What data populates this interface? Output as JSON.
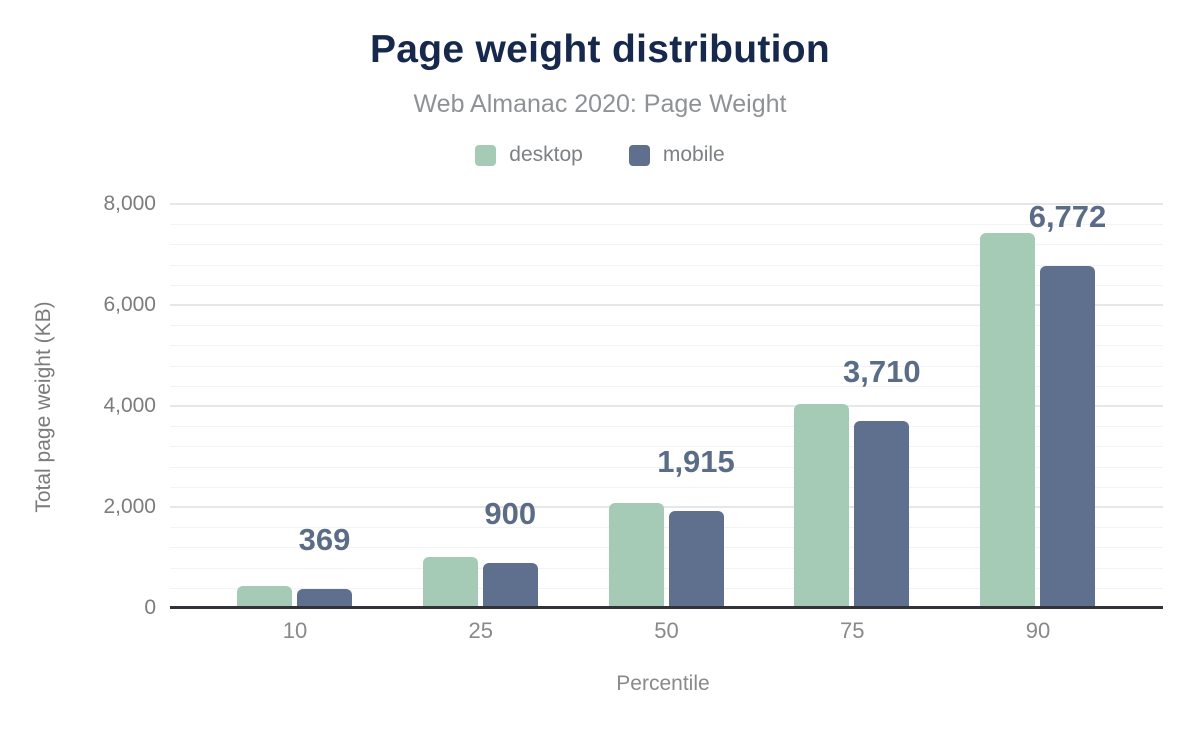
{
  "title": "Page weight distribution",
  "subtitle": "Web Almanac 2020: Page Weight",
  "chart_data": {
    "type": "bar",
    "title": "Page weight distribution",
    "subtitle": "Web Almanac 2020: Page Weight",
    "categories": [
      "10",
      "25",
      "50",
      "75",
      "90"
    ],
    "series": [
      {
        "name": "desktop",
        "color": "#a5cab6",
        "values": [
          433,
          1007,
          2080,
          4044,
          7426
        ]
      },
      {
        "name": "mobile",
        "color": "#5f708f",
        "values": [
          369,
          900,
          1915,
          3710,
          6772
        ],
        "data_labels": [
          "369",
          "900",
          "1,915",
          "3,710",
          "6,772"
        ]
      }
    ],
    "xlabel": "Percentile",
    "ylabel": "Total page weight (KB)",
    "ylim": [
      0,
      8000
    ],
    "ytick_step": 2000,
    "yticks": [
      "0",
      "2,000",
      "4,000",
      "6,000",
      "8,000"
    ],
    "minor_grid_step": 400,
    "grid": "horizontal",
    "legend_position": "top"
  },
  "colors": {
    "title": "#16294d",
    "subtitle": "#8e9297",
    "axis_text": "#7c7c7c",
    "data_label": "#5b6c87",
    "axis_line": "#32323a",
    "grid_major": "#e7e7e7",
    "grid_minor": "#f3f3f3",
    "desktop": "#a5cab6",
    "mobile": "#5f708f",
    "background": "#ffffff"
  }
}
